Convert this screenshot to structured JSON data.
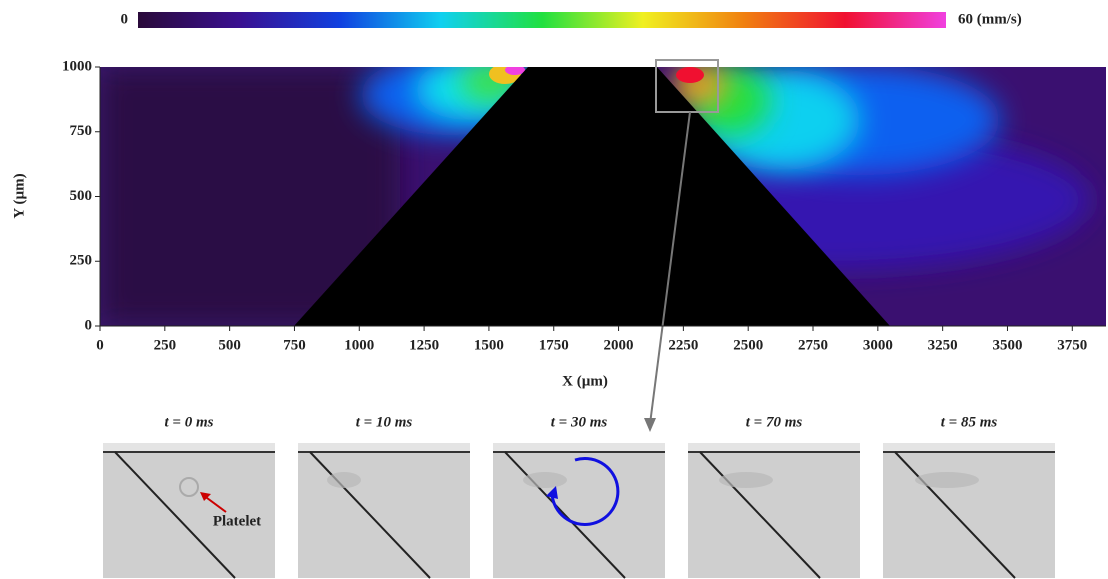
{
  "chart_data": {
    "type": "heatmap",
    "xlabel": "X (µm)",
    "ylabel": "Y (µm)",
    "xlim": [
      0,
      3880
    ],
    "ylim": [
      0,
      1000
    ],
    "xticks": [
      0,
      250,
      500,
      750,
      1000,
      1250,
      1500,
      1750,
      2000,
      2250,
      2500,
      2750,
      3000,
      3250,
      3500,
      3750
    ],
    "yticks": [
      0,
      250,
      500,
      750,
      1000
    ],
    "clim": [
      0,
      60
    ],
    "cticks": [
      0,
      {
        "value": 60,
        "label": "60 (mm/s)"
      }
    ],
    "colormap": [
      "#2a0a3a",
      "#3a1090",
      "#1040e0",
      "#10d0f0",
      "#20e040",
      "#f0f020",
      "#f08010",
      "#f01030",
      "#f040e0"
    ],
    "panels": [
      "t = 0 ms",
      "t = 10 ms",
      "t = 30 ms",
      "t = 70 ms",
      "t = 85 ms"
    ],
    "annotation": "Platelet"
  }
}
